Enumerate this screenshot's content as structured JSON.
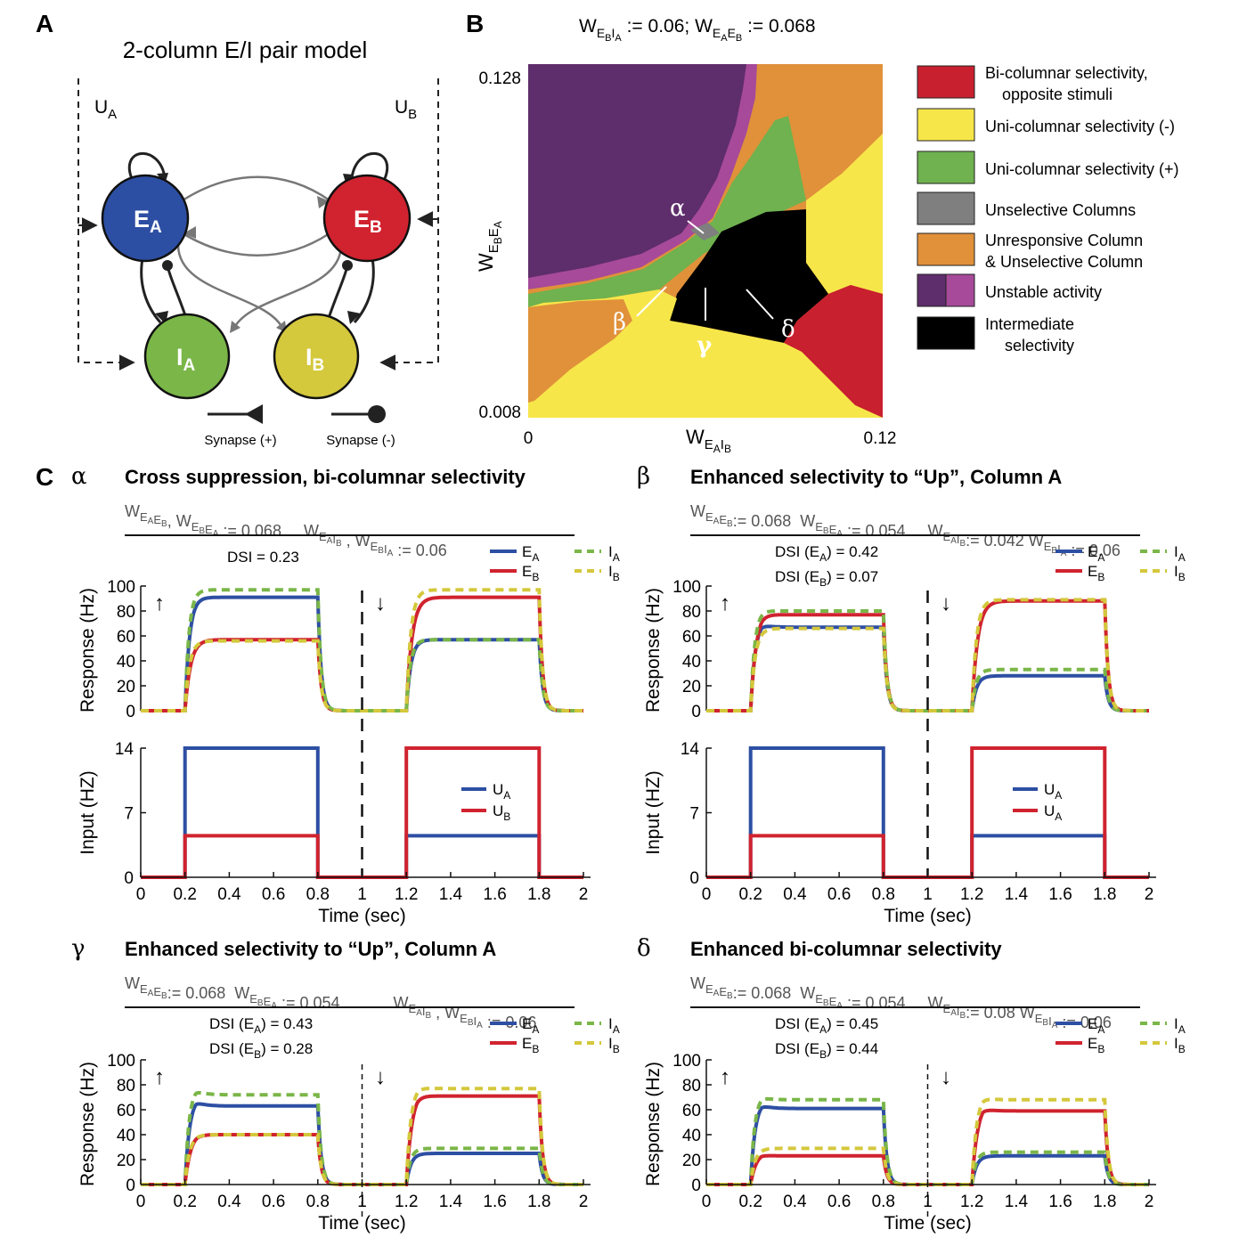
{
  "colors": {
    "EA": "#2d4fa3",
    "EB": "#d0232f",
    "IA": "#7ab648",
    "IB": "#d4c83c",
    "UA": "#2d4fa3",
    "UB": "#d0232f",
    "region_red": "#c8202e",
    "region_yellow": "#f7e64a",
    "region_green": "#6fb24f",
    "region_gray": "#7f7f7f",
    "region_orange": "#e0913a",
    "region_purple": "#5e2d6b",
    "region_magenta": "#a64a99",
    "region_black": "#000000"
  },
  "panelA": {
    "label": "A",
    "title": "2-column E/I pair model",
    "nodes": {
      "EA": "E",
      "EA_sub": "A",
      "EB": "E",
      "EB_sub": "B",
      "IA": "I",
      "IA_sub": "A",
      "IB": "I",
      "IB_sub": "B"
    },
    "inputs": {
      "UA": "U",
      "UA_sub": "A",
      "UB": "U",
      "UB_sub": "B"
    },
    "legend": {
      "excitatory": "Synapse (+)",
      "inhibitory": "Synapse (-)"
    }
  },
  "panelB": {
    "label": "B",
    "title_w1": "W",
    "title_w1_sub": "E",
    "title_w1_sub2": "B",
    "title_w1_sub3": "I",
    "title_w1_sub4": "A",
    "title_mid": " := 0.06; ",
    "title_w2": "W",
    "title_w2_sub": "E",
    "title_w2_sub2": "A",
    "title_w2_sub3": "E",
    "title_w2_sub4": "B",
    "title_end": " := 0.068",
    "ytick_top": "0.128",
    "ytick_bottom": "0.008",
    "xtick_left": "0",
    "xtick_right": "0.12",
    "ylabel": "W",
    "ylabel_sub": "E",
    "ylabel_sub2": "B",
    "ylabel_sub3": "E",
    "ylabel_sub4": "A",
    "xlabel": "W",
    "xlabel_sub": "E",
    "xlabel_sub2": "A",
    "xlabel_sub3": "I",
    "xlabel_sub4": "B",
    "points": {
      "alpha": "α",
      "beta": "β",
      "gamma": "γ",
      "delta": "δ"
    },
    "legend": [
      {
        "label": "Bi-columnar selectivity,",
        "label2": "opposite stimuli",
        "color": "#c8202e"
      },
      {
        "label": "Uni-columnar selectivity (-)",
        "label2": "",
        "color": "#f7e64a"
      },
      {
        "label": "Uni-columnar selectivity (+)",
        "label2": "",
        "color": "#6fb24f"
      },
      {
        "label": "Unselective Columns",
        "label2": "",
        "color": "#7f7f7f"
      },
      {
        "label": "Unresponsive Column",
        "label2": "& Unselective Column",
        "color": "#e0913a"
      },
      {
        "label": "Unstable activity",
        "label2": "",
        "color": "#5e2d6b"
      },
      {
        "label": "Intermediate",
        "label2": "selectivity",
        "color": "#000000"
      }
    ]
  },
  "panelC": {
    "label": "C",
    "response_ylabel": "Response (Hz)",
    "input_ylabel": "Input (HZ)",
    "xlabel": "Time (sec)",
    "xticks": [
      "0",
      "0.2",
      "0.4",
      "0.6",
      "0.8",
      "1",
      "1.2",
      "1.4",
      "1.6",
      "1.8",
      "2"
    ],
    "resp_yticks": [
      "0",
      "20",
      "40",
      "60",
      "80",
      "100"
    ],
    "input_yticks": [
      "0",
      "7",
      "14"
    ],
    "up_arrow": "↑",
    "down_arrow": "↓",
    "subpanels": [
      {
        "greek": "α",
        "title": "Cross suppression, bi-columnar selectivity",
        "params": "W<sub>E<sub>A</sub>E<sub>B</sub></sub>, W<sub>E<sub>B</sub>E<sub>A</sub></sub> := 0.068     W<sub>E<sub>A</sub>I<sub>B</sub></sub> , W<sub>E<sub>B</sub>I<sub>A</sub></sub> := 0.06",
        "dsi1": "DSI = 0.23",
        "dsi2": ""
      },
      {
        "greek": "β",
        "title": "Enhanced selectivity to “Up”, Column A",
        "params": "W<sub>E<sub>A</sub>E<sub>B</sub></sub>:= 0.068  W<sub>E<sub>B</sub>E<sub>A</sub></sub> := 0.054     W<sub>E<sub>A</sub>I<sub>B</sub></sub>:= 0.042 W<sub>E<sub>B</sub>I<sub>A</sub></sub> := 0.06",
        "dsi1": "DSI (E",
        "dsi1_sub": "A",
        "dsi1_val": ") = 0.42",
        "dsi2": "DSI (E",
        "dsi2_sub": "B",
        "dsi2_val": ") = 0.07"
      },
      {
        "greek": "γ",
        "title": "Enhanced selectivity to “Up”, Column A",
        "params": "W<sub>E<sub>A</sub>E<sub>B</sub></sub>:= 0.068  W<sub>E<sub>B</sub>E<sub>A</sub></sub> := 0.054            W<sub>E<sub>A</sub>I<sub>B</sub></sub> , W<sub>E<sub>B</sub>I<sub>A</sub></sub> := 0.06",
        "dsi1": "DSI (E",
        "dsi1_sub": "A",
        "dsi1_val": ") = 0.43",
        "dsi2": "DSI (E",
        "dsi2_sub": "B",
        "dsi2_val": ") = 0.28"
      },
      {
        "greek": "δ",
        "title": "Enhanced bi-columnar selectivity",
        "params": "W<sub>E<sub>A</sub>E<sub>B</sub></sub>:= 0.068  W<sub>E<sub>B</sub>E<sub>A</sub></sub> := 0.054     W<sub>E<sub>A</sub>I<sub>B</sub></sub>:= 0.08 W<sub>E<sub>B</sub>I<sub>A</sub></sub> := 0.06",
        "dsi1": "DSI (E",
        "dsi1_sub": "A",
        "dsi1_val": ") = 0.45",
        "dsi2": "DSI (E",
        "dsi2_sub": "B",
        "dsi2_val": ") = 0.44"
      }
    ],
    "legend_resp": {
      "EA": "E",
      "EA_sub": "A",
      "EB": "E",
      "EB_sub": "B",
      "IA": "I",
      "IA_sub": "A",
      "IB": "I",
      "IB_sub": "B"
    },
    "legend_input_alpha": {
      "U1": "U",
      "U1_sub": "A",
      "U2": "U",
      "U2_sub": "B"
    },
    "legend_input_beta": {
      "U1": "U",
      "U1_sub": "A",
      "U2": "U",
      "U2_sub": "A"
    }
  },
  "chart_data": [
    {
      "type": "line",
      "panel": "C-alpha-response",
      "xlabel": "Time (sec)",
      "ylabel": "Response (Hz)",
      "xlim": [
        0,
        2
      ],
      "ylim": [
        0,
        100
      ],
      "series": [
        {
          "name": "EA",
          "up": 91,
          "down": 57
        },
        {
          "name": "EB",
          "up": 57,
          "down": 91
        },
        {
          "name": "IA",
          "up": 97,
          "peakUp": 97,
          "down": 57
        },
        {
          "name": "IB",
          "up": 56,
          "down": 97
        }
      ]
    },
    {
      "type": "line",
      "panel": "C-alpha-input",
      "xlabel": "Time (sec)",
      "ylabel": "Input (HZ)",
      "xlim": [
        0,
        2
      ],
      "ylim": [
        0,
        14
      ],
      "series": [
        {
          "name": "UA",
          "up": 14,
          "down": 4.5
        },
        {
          "name": "UB",
          "up": 4.5,
          "down": 14
        }
      ]
    },
    {
      "type": "line",
      "panel": "C-beta-response",
      "xlabel": "Time (sec)",
      "ylabel": "Response (Hz)",
      "xlim": [
        0,
        2
      ],
      "ylim": [
        0,
        100
      ],
      "series": [
        {
          "name": "EA",
          "up": 67,
          "peakUp": 72,
          "down": 28
        },
        {
          "name": "EB",
          "up": 77,
          "peakUp": 82,
          "down": 88
        },
        {
          "name": "IA",
          "up": 80,
          "peakUp": 81,
          "down": 33
        },
        {
          "name": "IB",
          "up": 66,
          "down": 89
        }
      ]
    },
    {
      "type": "line",
      "panel": "C-beta-input",
      "xlabel": "Time (sec)",
      "ylabel": "Input (HZ)",
      "xlim": [
        0,
        2
      ],
      "ylim": [
        0,
        14
      ],
      "series": [
        {
          "name": "UA",
          "up": 14,
          "down": 4.5
        },
        {
          "name": "UB",
          "up": 4.5,
          "down": 14
        }
      ]
    },
    {
      "type": "line",
      "panel": "C-gamma-response",
      "xlabel": "Time (sec)",
      "ylabel": "Response (Hz)",
      "xlim": [
        0,
        2
      ],
      "ylim": [
        0,
        100
      ],
      "series": [
        {
          "name": "EA",
          "up": 63,
          "peakUp": 70,
          "down": 25
        },
        {
          "name": "EB",
          "up": 40,
          "peakUp": 42,
          "down": 71,
          "peakDown": 76
        },
        {
          "name": "IA",
          "up": 72,
          "peakUp": 78,
          "down": 29
        },
        {
          "name": "IB",
          "up": 40,
          "down": 77,
          "peakDown": 80
        }
      ]
    },
    {
      "type": "line",
      "panel": "C-delta-response",
      "xlabel": "Time (sec)",
      "ylabel": "Response (Hz)",
      "xlim": [
        0,
        2
      ],
      "ylim": [
        0,
        100
      ],
      "series": [
        {
          "name": "EA",
          "up": 61,
          "peakUp": 67,
          "down": 23
        },
        {
          "name": "EB",
          "up": 23,
          "peakUp": 26,
          "down": 59,
          "peakDown": 67
        },
        {
          "name": "IA",
          "up": 68,
          "peakUp": 72,
          "down": 26
        },
        {
          "name": "IB",
          "up": 29,
          "down": 68,
          "peakDown": 72
        }
      ]
    }
  ]
}
